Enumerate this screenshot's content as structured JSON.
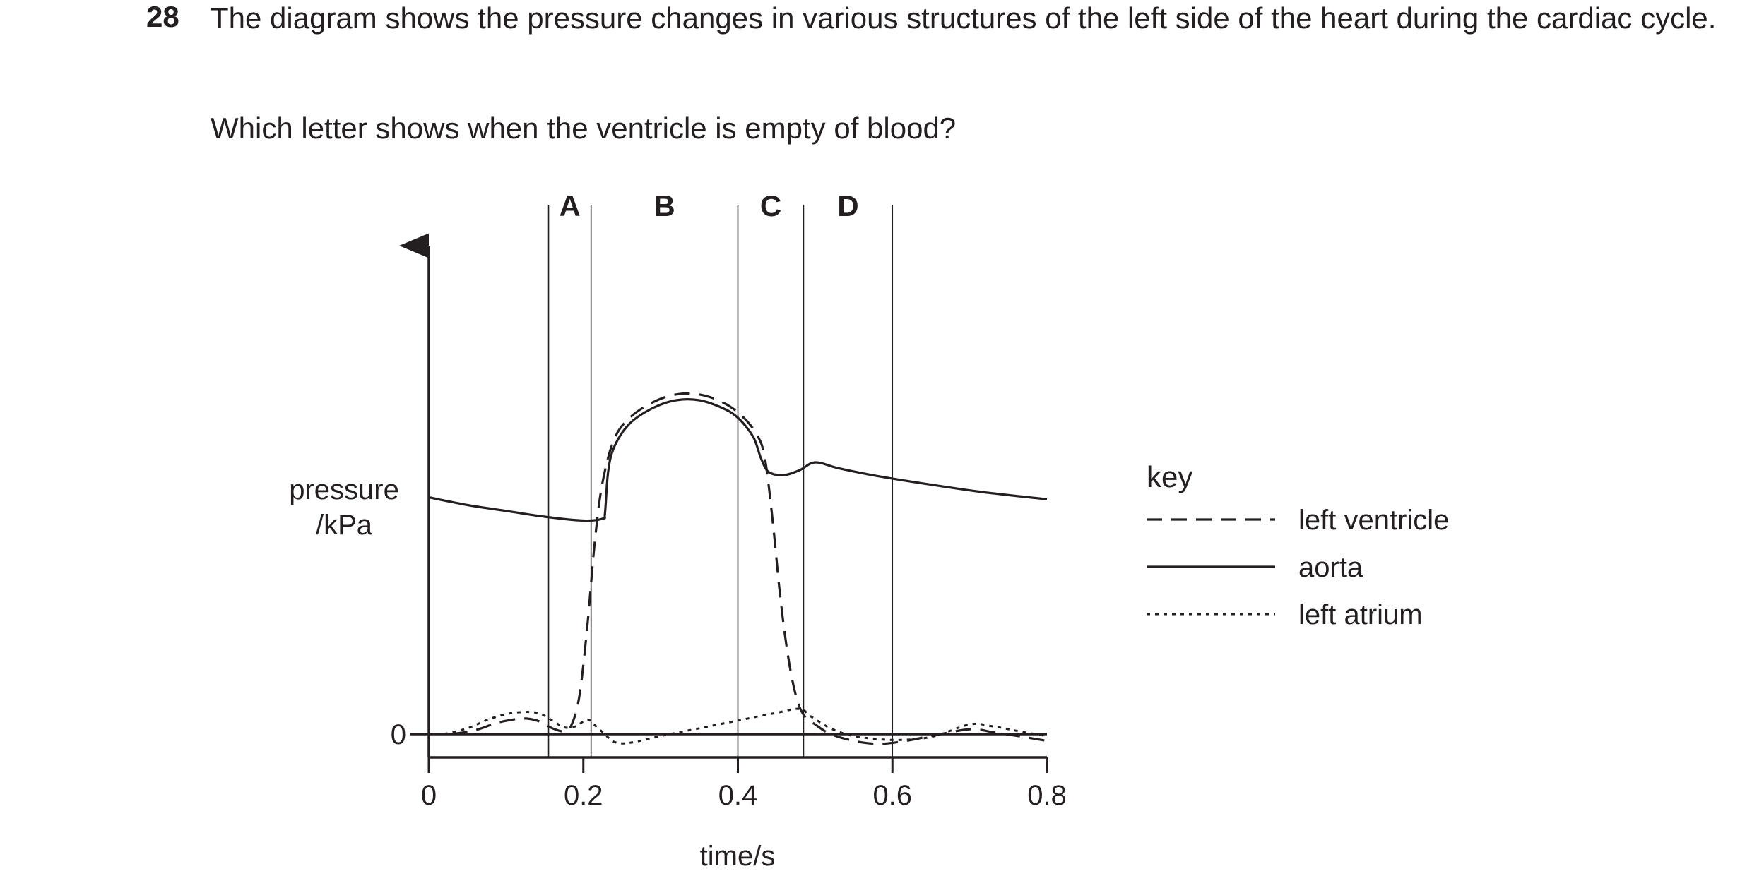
{
  "question": {
    "number": "28",
    "text": "The diagram shows the pressure changes in various structures of the left side of the heart during the cardiac cycle.",
    "prompt": "Which letter shows when the ventricle is empty of blood?"
  },
  "chart_data": {
    "type": "line",
    "xlabel": "time / s",
    "ylabel": "pressure / kPa",
    "xlim": [
      0,
      0.8
    ],
    "x_ticks": [
      "0",
      "0.2",
      "0.4",
      "0.6",
      "0.8"
    ],
    "y_ticks": [
      "0"
    ],
    "grid": false,
    "legend": {
      "title": "key",
      "position": "right"
    },
    "phase_markers": {
      "boundaries_s": [
        0.155,
        0.21,
        0.4,
        0.485,
        0.6
      ],
      "labels": [
        "A",
        "B",
        "C",
        "D"
      ]
    },
    "series": [
      {
        "name": "left ventricle",
        "style": "dashed",
        "points": [
          [
            0.03,
            0.0
          ],
          [
            0.06,
            0.2
          ],
          [
            0.09,
            0.6
          ],
          [
            0.12,
            0.8
          ],
          [
            0.14,
            0.7
          ],
          [
            0.16,
            0.3
          ],
          [
            0.175,
            0.15
          ],
          [
            0.185,
            0.5
          ],
          [
            0.195,
            2.0
          ],
          [
            0.205,
            5.5
          ],
          [
            0.215,
            10.0
          ],
          [
            0.225,
            13.0
          ],
          [
            0.24,
            15.2
          ],
          [
            0.26,
            16.3
          ],
          [
            0.29,
            17.1
          ],
          [
            0.32,
            17.5
          ],
          [
            0.35,
            17.5
          ],
          [
            0.38,
            17.1
          ],
          [
            0.405,
            16.4
          ],
          [
            0.425,
            15.4
          ],
          [
            0.435,
            14.2
          ],
          [
            0.445,
            11.0
          ],
          [
            0.455,
            7.0
          ],
          [
            0.465,
            4.0
          ],
          [
            0.475,
            2.0
          ],
          [
            0.485,
            1.0
          ],
          [
            0.5,
            0.5
          ],
          [
            0.52,
            0.0
          ],
          [
            0.55,
            -0.35
          ],
          [
            0.58,
            -0.5
          ],
          [
            0.61,
            -0.4
          ],
          [
            0.65,
            -0.1
          ],
          [
            0.7,
            0.25
          ],
          [
            0.73,
            0.1
          ],
          [
            0.77,
            -0.15
          ],
          [
            0.8,
            -0.35
          ]
        ]
      },
      {
        "name": "aorta",
        "style": "solid",
        "points": [
          [
            0.0,
            12.2
          ],
          [
            0.05,
            11.8
          ],
          [
            0.1,
            11.5
          ],
          [
            0.15,
            11.2
          ],
          [
            0.2,
            11.0
          ],
          [
            0.225,
            11.1
          ],
          [
            0.228,
            11.4
          ],
          [
            0.232,
            13.5
          ],
          [
            0.24,
            14.8
          ],
          [
            0.26,
            16.0
          ],
          [
            0.29,
            16.8
          ],
          [
            0.32,
            17.2
          ],
          [
            0.35,
            17.2
          ],
          [
            0.38,
            16.8
          ],
          [
            0.4,
            16.3
          ],
          [
            0.42,
            15.3
          ],
          [
            0.43,
            14.2
          ],
          [
            0.44,
            13.5
          ],
          [
            0.46,
            13.35
          ],
          [
            0.48,
            13.6
          ],
          [
            0.5,
            14.0
          ],
          [
            0.53,
            13.7
          ],
          [
            0.58,
            13.3
          ],
          [
            0.65,
            12.85
          ],
          [
            0.72,
            12.45
          ],
          [
            0.8,
            12.1
          ]
        ]
      },
      {
        "name": "left atrium",
        "style": "dotted",
        "points": [
          [
            0.02,
            0.0
          ],
          [
            0.05,
            0.3
          ],
          [
            0.08,
            0.8
          ],
          [
            0.11,
            1.1
          ],
          [
            0.14,
            1.1
          ],
          [
            0.16,
            0.7
          ],
          [
            0.175,
            0.35
          ],
          [
            0.19,
            0.4
          ],
          [
            0.205,
            0.75
          ],
          [
            0.215,
            0.45
          ],
          [
            0.225,
            0.1
          ],
          [
            0.24,
            -0.4
          ],
          [
            0.26,
            -0.45
          ],
          [
            0.3,
            -0.1
          ],
          [
            0.35,
            0.3
          ],
          [
            0.4,
            0.7
          ],
          [
            0.45,
            1.1
          ],
          [
            0.48,
            1.3
          ],
          [
            0.495,
            0.9
          ],
          [
            0.52,
            0.3
          ],
          [
            0.55,
            -0.1
          ],
          [
            0.6,
            -0.3
          ],
          [
            0.65,
            -0.15
          ],
          [
            0.7,
            0.5
          ],
          [
            0.73,
            0.4
          ],
          [
            0.77,
            0.1
          ],
          [
            0.8,
            -0.1
          ]
        ]
      }
    ]
  }
}
